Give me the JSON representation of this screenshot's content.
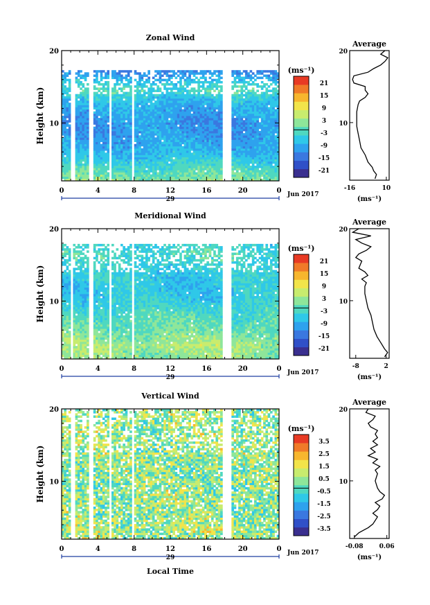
{
  "chart_data": [
    {
      "type": "heatmap",
      "title": "Zonal Wind",
      "ylabel": "Height (km)",
      "xlabel": "",
      "x_ticks": [
        "0",
        "4",
        "8",
        "12",
        "16",
        "20",
        "0"
      ],
      "y_ticks": [
        "20",
        "10"
      ],
      "xlim": [
        0,
        24
      ],
      "ylim": [
        2,
        20
      ],
      "date_label": "29",
      "month_label": "Jun 2017",
      "unit_label": "(ms⁻¹)",
      "colorbar_ticks": [
        "21",
        "15",
        "9",
        "3",
        "-3",
        "-9",
        "-15",
        "-21"
      ],
      "colorbar_range": [
        -24,
        24
      ],
      "field_mean_profile": [
        {
          "h": 2,
          "v": 2
        },
        {
          "h": 4,
          "v": -3
        },
        {
          "h": 6,
          "v": -8
        },
        {
          "h": 8,
          "v": -10
        },
        {
          "h": 10,
          "v": -11
        },
        {
          "h": 12,
          "v": -9
        },
        {
          "h": 13.5,
          "v": -6
        },
        {
          "h": 14.5,
          "v": -2
        },
        {
          "h": 15.5,
          "v": -5
        },
        {
          "h": 16.5,
          "v": -10
        },
        {
          "h": 17,
          "v": -12
        }
      ],
      "field_columns": {
        "start_hour": 0,
        "end_hour": 24,
        "gaps_hours": [
          1.1,
          3.1,
          5.3,
          7.8,
          17.9,
          18.4
        ],
        "data_top_km": 17.2
      },
      "average": {
        "title": "Average",
        "xlabel": "(ms⁻¹)",
        "x_ticks": [
          "-16",
          "10"
        ],
        "y_ticks": [
          "20",
          "10"
        ],
        "xlim": [
          -16,
          12
        ],
        "ylim": [
          2,
          20
        ],
        "profile": [
          {
            "h": 2.2,
            "v": 2
          },
          {
            "h": 2.8,
            "v": 3
          },
          {
            "h": 3.3,
            "v": 1
          },
          {
            "h": 3.8,
            "v": 0
          },
          {
            "h": 4.5,
            "v": -3
          },
          {
            "h": 5.5,
            "v": -5
          },
          {
            "h": 6.5,
            "v": -8
          },
          {
            "h": 7.5,
            "v": -9
          },
          {
            "h": 8.5,
            "v": -10
          },
          {
            "h": 9.5,
            "v": -11
          },
          {
            "h": 10.5,
            "v": -11
          },
          {
            "h": 11.5,
            "v": -11
          },
          {
            "h": 12.5,
            "v": -10
          },
          {
            "h": 13,
            "v": -9
          },
          {
            "h": 13.5,
            "v": -5
          },
          {
            "h": 14,
            "v": -3
          },
          {
            "h": 14.5,
            "v": -5
          },
          {
            "h": 15,
            "v": -5
          },
          {
            "h": 15.5,
            "v": -13
          },
          {
            "h": 16,
            "v": -14
          },
          {
            "h": 16.5,
            "v": -13
          },
          {
            "h": 17,
            "v": -3
          },
          {
            "h": 17.5,
            "v": 1
          },
          {
            "h": 18,
            "v": 6
          },
          {
            "h": 18.5,
            "v": 9
          },
          {
            "h": 19,
            "v": 11
          },
          {
            "h": 19.5,
            "v": 6
          },
          {
            "h": 20,
            "v": 9
          }
        ]
      }
    },
    {
      "type": "heatmap",
      "title": "Meridional Wind",
      "ylabel": "Height (km)",
      "xlabel": "",
      "x_ticks": [
        "0",
        "4",
        "8",
        "12",
        "16",
        "20",
        "0"
      ],
      "y_ticks": [
        "20",
        "10"
      ],
      "xlim": [
        0,
        24
      ],
      "ylim": [
        2,
        20
      ],
      "date_label": "29",
      "month_label": "Jun 2017",
      "unit_label": "(ms⁻¹)",
      "colorbar_ticks": [
        "21",
        "15",
        "9",
        "3",
        "-3",
        "-9",
        "-15",
        "-21"
      ],
      "colorbar_range": [
        -24,
        24
      ],
      "field_mean_profile": [
        {
          "h": 2,
          "v": 2
        },
        {
          "h": 4,
          "v": 4
        },
        {
          "h": 5,
          "v": 2
        },
        {
          "h": 6,
          "v": 0
        },
        {
          "h": 8,
          "v": -2
        },
        {
          "h": 10,
          "v": -5
        },
        {
          "h": 12,
          "v": -6
        },
        {
          "h": 14,
          "v": -5
        },
        {
          "h": 15.5,
          "v": -4
        },
        {
          "h": 16.5,
          "v": -2
        },
        {
          "h": 17.5,
          "v": -4
        }
      ],
      "field_columns": {
        "start_hour": 0,
        "end_hour": 24,
        "gaps_hours": [
          0.9,
          3.1,
          5.3,
          7.8,
          17.9,
          18.4
        ],
        "data_top_km": 17.8
      },
      "average": {
        "title": "Average",
        "xlabel": "(ms⁻¹)",
        "x_ticks": [
          "-8",
          "2"
        ],
        "y_ticks": [
          "20",
          "10"
        ],
        "xlim": [
          -10,
          3
        ],
        "ylim": [
          2,
          20
        ],
        "profile": [
          {
            "h": 2.2,
            "v": 1.5
          },
          {
            "h": 2.8,
            "v": 2.5
          },
          {
            "h": 3.3,
            "v": 1.5
          },
          {
            "h": 4,
            "v": 0.5
          },
          {
            "h": 5,
            "v": -1
          },
          {
            "h": 6,
            "v": -2
          },
          {
            "h": 7,
            "v": -2.5
          },
          {
            "h": 8,
            "v": -3
          },
          {
            "h": 9,
            "v": -4
          },
          {
            "h": 10,
            "v": -4.5
          },
          {
            "h": 11,
            "v": -5
          },
          {
            "h": 12,
            "v": -5
          },
          {
            "h": 12.5,
            "v": -4.5
          },
          {
            "h": 13,
            "v": -6
          },
          {
            "h": 13.5,
            "v": -4
          },
          {
            "h": 14,
            "v": -5
          },
          {
            "h": 14.5,
            "v": -7
          },
          {
            "h": 15,
            "v": -6.5
          },
          {
            "h": 15.5,
            "v": -6
          },
          {
            "h": 16,
            "v": -8
          },
          {
            "h": 16.5,
            "v": -7
          },
          {
            "h": 17,
            "v": -4.5
          },
          {
            "h": 17.5,
            "v": -3
          },
          {
            "h": 18,
            "v": -6
          },
          {
            "h": 18.5,
            "v": -8
          },
          {
            "h": 19,
            "v": -3
          },
          {
            "h": 19.5,
            "v": -9
          },
          {
            "h": 20,
            "v": -7
          }
        ]
      }
    },
    {
      "type": "heatmap",
      "title": "Vertical Wind",
      "ylabel": "Height (km)",
      "xlabel": "Local Time",
      "x_ticks": [
        "0",
        "4",
        "8",
        "12",
        "16",
        "20",
        "0"
      ],
      "y_ticks": [
        "20",
        "10"
      ],
      "xlim": [
        0,
        24
      ],
      "ylim": [
        2,
        20
      ],
      "date_label": "29",
      "month_label": "Jun 2017",
      "unit_label": "(ms⁻¹)",
      "colorbar_ticks": [
        "3.5",
        "2.5",
        "1.5",
        "0.5",
        "-0.5",
        "-1.5",
        "-2.5",
        "-3.5"
      ],
      "colorbar_range": [
        -4,
        4
      ],
      "field_mean_profile": [
        {
          "h": 2,
          "v": 0.6
        },
        {
          "h": 6,
          "v": 0.5
        },
        {
          "h": 10,
          "v": 0.4
        },
        {
          "h": 14,
          "v": 0.5
        },
        {
          "h": 17,
          "v": 0.6
        },
        {
          "h": 20,
          "v": 0.5
        }
      ],
      "field_columns": {
        "start_hour": 0,
        "end_hour": 24,
        "gaps_hours": [
          1.1,
          3.1,
          5.3,
          7.8,
          17.9,
          18.4
        ],
        "data_top_km": 20
      },
      "average": {
        "title": "Average",
        "xlabel": "(ms⁻¹)",
        "x_ticks": [
          "-0.08",
          "0.06"
        ],
        "y_ticks": [
          "20",
          "10"
        ],
        "xlim": [
          -0.1,
          0.07
        ],
        "ylim": [
          2,
          20
        ],
        "profile": [
          {
            "h": 2.2,
            "v": -0.08
          },
          {
            "h": 2.8,
            "v": -0.06
          },
          {
            "h": 3.5,
            "v": -0.02
          },
          {
            "h": 4,
            "v": 0.0
          },
          {
            "h": 4.5,
            "v": 0.01
          },
          {
            "h": 5,
            "v": 0.02
          },
          {
            "h": 5.5,
            "v": 0.0
          },
          {
            "h": 6,
            "v": 0.02
          },
          {
            "h": 6.5,
            "v": 0.03
          },
          {
            "h": 7,
            "v": 0.01
          },
          {
            "h": 7.5,
            "v": 0.04
          },
          {
            "h": 8,
            "v": 0.05
          },
          {
            "h": 8.5,
            "v": 0.03
          },
          {
            "h": 9,
            "v": 0.02
          },
          {
            "h": 10,
            "v": 0.01
          },
          {
            "h": 11,
            "v": 0.02
          },
          {
            "h": 11.5,
            "v": 0.01
          },
          {
            "h": 12,
            "v": 0.03
          },
          {
            "h": 12.5,
            "v": 0.0
          },
          {
            "h": 13,
            "v": 0.02
          },
          {
            "h": 13.5,
            "v": -0.02
          },
          {
            "h": 14,
            "v": 0.01
          },
          {
            "h": 14.5,
            "v": -0.01
          },
          {
            "h": 15,
            "v": 0.02
          },
          {
            "h": 15.5,
            "v": 0.0
          },
          {
            "h": 16,
            "v": 0.02
          },
          {
            "h": 16.5,
            "v": 0.01
          },
          {
            "h": 17,
            "v": 0.02
          },
          {
            "h": 17.5,
            "v": -0.01
          },
          {
            "h": 18,
            "v": -0.02
          },
          {
            "h": 18.5,
            "v": 0.0
          },
          {
            "h": 19,
            "v": 0.01
          },
          {
            "h": 19.5,
            "v": -0.03
          },
          {
            "h": 20,
            "v": -0.02
          }
        ]
      }
    }
  ]
}
